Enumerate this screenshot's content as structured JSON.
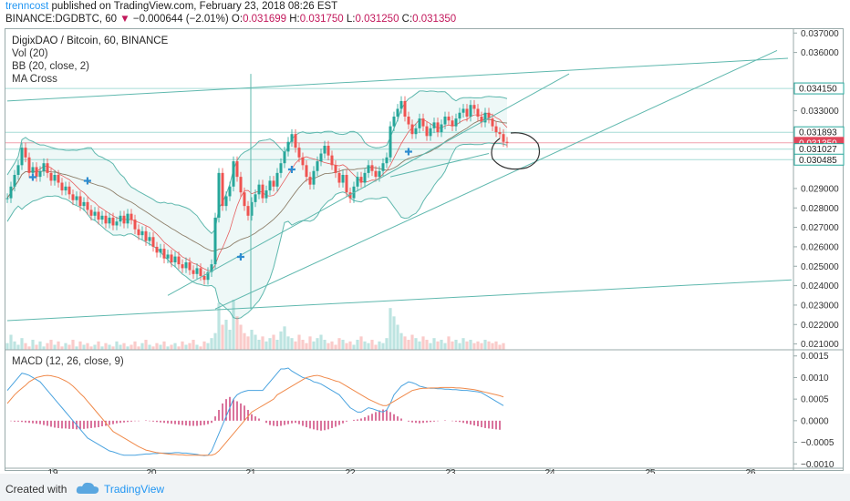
{
  "header": {
    "author": "trenncost",
    "published": " published on TradingView.com, February 23, 2018 08:26 EST",
    "symbol": "BINANCE:DGDBTC, 60",
    "change_arrow": "▼",
    "change": "−0.000644 (−2.01%)",
    "ohlc": [
      {
        "label": "O:",
        "value": "0.031699"
      },
      {
        "label": "H:",
        "value": "0.031750"
      },
      {
        "label": "L:",
        "value": "0.031250"
      },
      {
        "label": "C:",
        "value": "0.031350"
      }
    ],
    "last": "0.031350"
  },
  "legend": {
    "title": "DigixDAO / Bitcoin, 60, BINANCE",
    "vol": "Vol (20)",
    "bb": "BB (20, close, 2)",
    "ma": "MA Cross",
    "macd": "MACD (12, 26, close, 9)"
  },
  "footer": {
    "created_with": "Created with",
    "brand": "TradingView"
  },
  "chart_data": [
    {
      "type": "candlestick",
      "title": "DigixDAO / Bitcoin, 60, BINANCE",
      "x_ticks": [
        "19",
        "20",
        "21",
        "22",
        "23",
        "24",
        "25",
        "26"
      ],
      "ylim": [
        0.0207,
        0.0372
      ],
      "y_ticks": [
        "0.037000",
        "0.036000",
        "0.034150",
        "0.033000",
        "0.031893",
        "0.031350",
        "0.031027",
        "0.030485",
        "0.029000",
        "0.028000",
        "0.027000",
        "0.026000",
        "0.025000",
        "0.024000",
        "0.023000",
        "0.022000",
        "0.021000"
      ],
      "price_labels": [
        {
          "value": "0.034150",
          "y": 0.03415,
          "style": "outline"
        },
        {
          "value": "0.031893",
          "y": 0.031893,
          "style": "outline"
        },
        {
          "value": "0.031350",
          "y": 0.03135,
          "style": "red"
        },
        {
          "value": "34:16",
          "y": 0.03085,
          "style": "red"
        },
        {
          "value": "0.031027",
          "y": 0.031027,
          "style": "outline"
        },
        {
          "value": "0.030485",
          "y": 0.030485,
          "style": "outline"
        }
      ],
      "closes_start": 0.0285,
      "closes": [
        0.0285,
        0.0291,
        0.0297,
        0.0302,
        0.0311,
        0.0306,
        0.0298,
        0.0301,
        0.0296,
        0.0299,
        0.0303,
        0.0298,
        0.0294,
        0.0297,
        0.0293,
        0.0289,
        0.0291,
        0.0287,
        0.0284,
        0.0286,
        0.0281,
        0.0283,
        0.0279,
        0.0276,
        0.0278,
        0.0274,
        0.0276,
        0.0272,
        0.0275,
        0.0271,
        0.0273,
        0.0276,
        0.0272,
        0.0277,
        0.0274,
        0.0269,
        0.0266,
        0.0268,
        0.0263,
        0.0265,
        0.026,
        0.0257,
        0.0259,
        0.0254,
        0.0256,
        0.0252,
        0.0255,
        0.0251,
        0.0249,
        0.0252,
        0.0248,
        0.0246,
        0.0249,
        0.0245,
        0.0243,
        0.0247,
        0.0251,
        0.0275,
        0.0298,
        0.0281,
        0.0286,
        0.0291,
        0.0304,
        0.0296,
        0.0288,
        0.0281,
        0.0276,
        0.0283,
        0.0287,
        0.0292,
        0.0285,
        0.0289,
        0.0294,
        0.0291,
        0.0298,
        0.0303,
        0.0309,
        0.0314,
        0.0318,
        0.0311,
        0.0306,
        0.0302,
        0.0296,
        0.0292,
        0.0299,
        0.0304,
        0.0308,
        0.0312,
        0.0307,
        0.0302,
        0.0298,
        0.0293,
        0.0297,
        0.0288,
        0.0285,
        0.0291,
        0.0296,
        0.0293,
        0.0298,
        0.0302,
        0.0299,
        0.0296,
        0.0299,
        0.0303,
        0.0306,
        0.0322,
        0.0327,
        0.0331,
        0.0335,
        0.0327,
        0.0323,
        0.0318,
        0.0321,
        0.0326,
        0.0322,
        0.0317,
        0.0321,
        0.0324,
        0.0319,
        0.0323,
        0.0327,
        0.0325,
        0.0322,
        0.0326,
        0.0329,
        0.0331,
        0.0327,
        0.0333,
        0.0331,
        0.0327,
        0.0324,
        0.0329,
        0.0326,
        0.0322,
        0.0319,
        0.0318,
        0.0314,
        0.03135
      ],
      "volume": [
        4,
        9,
        5,
        3,
        7,
        4,
        2,
        6,
        3,
        5,
        2,
        4,
        6,
        3,
        5,
        2,
        4,
        3,
        6,
        2,
        5,
        3,
        4,
        2,
        3,
        5,
        2,
        4,
        3,
        2,
        5,
        3,
        4,
        2,
        3,
        5,
        2,
        4,
        6,
        3,
        2,
        4,
        3,
        5,
        2,
        3,
        4,
        2,
        5,
        3,
        4,
        6,
        3,
        2,
        5,
        4,
        7,
        10,
        28,
        15,
        18,
        12,
        30,
        20,
        15,
        10,
        8,
        12,
        9,
        6,
        8,
        5,
        7,
        9,
        6,
        11,
        14,
        8,
        7,
        5,
        9,
        6,
        4,
        8,
        5,
        7,
        9,
        6,
        4,
        5,
        3,
        7,
        6,
        4,
        5,
        3,
        6,
        8,
        5,
        4,
        6,
        3,
        5,
        4,
        7,
        25,
        20,
        15,
        10,
        8,
        6,
        9,
        7,
        5,
        8,
        6,
        4,
        7,
        5,
        6,
        4,
        8,
        5,
        6,
        4,
        7,
        5,
        6,
        4,
        5,
        4,
        6,
        5,
        4,
        5,
        3,
        4
      ],
      "trendlines": [
        {
          "from": [
            0,
            0.0335
          ],
          "to": [
            214,
            0.0357
          ]
        },
        {
          "from": [
            0,
            0.0222
          ],
          "to": [
            215,
            0.0243
          ]
        },
        {
          "from": [
            44,
            0.0235
          ],
          "to": [
            154,
            0.0349
          ]
        },
        {
          "from": [
            57,
            0.0228
          ],
          "to": [
            211,
            0.0361
          ]
        },
        {
          "from": [
            105,
            0.0296
          ],
          "to": [
            132,
            0.0308
          ]
        }
      ],
      "horizontal_lines": [
        0.03415,
        0.031893,
        0.031027,
        0.030485
      ],
      "annotation": "ellipse"
    },
    {
      "type": "histogram+line",
      "title": "MACD (12, 26, close, 9)",
      "ylim": [
        -0.0011,
        0.0016
      ],
      "y_ticks": [
        "0.0015",
        "0.0010",
        "0.0005",
        "0.0000",
        "−0.0005",
        "−0.0010"
      ],
      "macd": [
        0.0007,
        0.0008,
        0.0009,
        0.001,
        0.0011,
        0.00108,
        0.00105,
        0.001,
        0.00095,
        0.0009,
        0.0008,
        0.0007,
        0.0006,
        0.0005,
        0.0004,
        0.0003,
        0.0002,
        0.0001,
        0.0,
        -0.0001,
        -0.0002,
        -0.0003,
        -0.0004,
        -0.00045,
        -0.0005,
        -0.00055,
        -0.0006,
        -0.00065,
        -0.0007,
        -0.00072,
        -0.00075,
        -0.00078,
        -0.0008,
        -0.0008,
        -0.0008,
        -0.0008,
        -0.00079,
        -0.00078,
        -0.00077,
        -0.00077,
        -0.00076,
        -0.00076,
        -0.00075,
        -0.00075,
        -0.00075,
        -0.00075,
        -0.00074,
        -0.00074,
        -0.00075,
        -0.00075,
        -0.00076,
        -0.00077,
        -0.00078,
        -0.0008,
        -0.00081,
        -0.0008,
        -0.0007,
        -0.0005,
        -0.0003,
        -0.0001,
        0.0001,
        0.0003,
        0.0005,
        0.0006,
        0.00065,
        0.00068,
        0.0007,
        0.0007,
        0.0007,
        0.0007,
        0.0007,
        0.0008,
        0.0009,
        0.001,
        0.0011,
        0.0012,
        0.0012,
        0.00122,
        0.00115,
        0.0011,
        0.00105,
        0.001,
        0.00098,
        0.00095,
        0.0009,
        0.00088,
        0.00085,
        0.0008,
        0.00075,
        0.0007,
        0.00065,
        0.0006,
        0.0005,
        0.0004,
        0.0003,
        0.00025,
        0.0002,
        0.0002,
        0.00025,
        0.0003,
        0.00028,
        0.00025,
        0.00022,
        0.0002,
        0.00025,
        0.0004,
        0.0006,
        0.0007,
        0.0008,
        0.00085,
        0.0009,
        0.00088,
        0.00085,
        0.0008,
        0.00078,
        0.00076,
        0.00075,
        0.00075,
        0.00074,
        0.00074,
        0.00073,
        0.00073,
        0.00072,
        0.00072,
        0.00071,
        0.0007,
        0.0007,
        0.00069,
        0.00068,
        0.00067,
        0.00065,
        0.0006,
        0.00055,
        0.0005,
        0.00045,
        0.0004,
        0.00035
      ],
      "signal": [
        0.0004,
        0.0005,
        0.0006,
        0.00068,
        0.00075,
        0.00082,
        0.0009,
        0.00095,
        0.001,
        0.00102,
        0.00104,
        0.00105,
        0.00104,
        0.00102,
        0.001,
        0.00096,
        0.00092,
        0.00087,
        0.0008,
        0.00072,
        0.00063,
        0.00055,
        0.00045,
        0.00035,
        0.00025,
        0.00015,
        5e-05,
        -5e-05,
        -0.00015,
        -0.00025,
        -0.0003,
        -0.00035,
        -0.0004,
        -0.00045,
        -0.0005,
        -0.00055,
        -0.0006,
        -0.00064,
        -0.00068,
        -0.0007,
        -0.00072,
        -0.00074,
        -0.00075,
        -0.00076,
        -0.00077,
        -0.00078,
        -0.00078,
        -0.00079,
        -0.00079,
        -0.0008,
        -0.0008,
        -0.0008,
        -0.0008,
        -0.0008,
        -0.0008,
        -0.0008,
        -0.0008,
        -0.00077,
        -0.0007,
        -0.0006,
        -0.0005,
        -0.0004,
        -0.0003,
        -0.0002,
        -0.0001,
        0.0,
        0.0001,
        0.0002,
        0.00025,
        0.0003,
        0.00035,
        0.0004,
        0.00045,
        0.0005,
        0.0006,
        0.00065,
        0.0007,
        0.00075,
        0.0008,
        0.00085,
        0.0009,
        0.00095,
        0.001,
        0.00102,
        0.00104,
        0.00105,
        0.00103,
        0.001,
        0.00098,
        0.00095,
        0.00092,
        0.0009,
        0.00085,
        0.0008,
        0.00075,
        0.0007,
        0.00065,
        0.0006,
        0.00055,
        0.0005,
        0.00046,
        0.00042,
        0.00038,
        0.00035,
        0.00035,
        0.0004,
        0.00045,
        0.0005,
        0.00055,
        0.0006,
        0.00065,
        0.0007,
        0.00072,
        0.00074,
        0.00075,
        0.00075,
        0.00076,
        0.00076,
        0.00076,
        0.00077,
        0.00077,
        0.00077,
        0.00077,
        0.00076,
        0.00076,
        0.00075,
        0.00074,
        0.00073,
        0.00072,
        0.0007,
        0.00068,
        0.00066,
        0.00064,
        0.00062,
        0.0006,
        0.00058,
        0.00055
      ],
      "histogram": [
        0.0,
        -1e-05,
        -2e-05,
        -2e-05,
        -3e-05,
        -4e-05,
        -5e-05,
        -6e-05,
        -7e-05,
        -8e-05,
        -0.0001,
        -0.00012,
        -0.00014,
        -0.00016,
        -0.00017,
        -0.00018,
        -0.00018,
        -0.00019,
        -0.00019,
        -0.0002,
        -0.0002,
        -0.00019,
        -0.00018,
        -0.00017,
        -0.00016,
        -0.00015,
        -0.00013,
        -0.00012,
        -0.0001,
        -8e-05,
        -6e-05,
        -5e-05,
        -4e-05,
        -3e-05,
        -2e-05,
        -1e-05,
        -1e-05,
        0.0,
        1e-05,
        -1e-05,
        -2e-05,
        -3e-05,
        -4e-05,
        -5e-05,
        -6e-05,
        -7e-05,
        -8e-05,
        -9e-05,
        -0.0001,
        -0.00011,
        -0.00012,
        -0.00012,
        -0.00012,
        -0.00011,
        -0.0001,
        -8e-05,
        -5e-05,
        0.0001,
        0.00025,
        0.0004,
        0.0005,
        0.00055,
        0.0005,
        0.00045,
        0.0004,
        0.00035,
        0.00025,
        0.00015,
        0.0001,
        5e-05,
        0.0,
        -5e-05,
        -0.0001,
        -0.00012,
        -0.00013,
        -0.00012,
        -0.0001,
        -8e-05,
        -6e-05,
        -5e-05,
        -8e-05,
        -0.00012,
        -0.00015,
        -0.00018,
        -0.0002,
        -0.00022,
        -0.00023,
        -0.00022,
        -0.0002,
        -0.00017,
        -0.00014,
        -0.0001,
        -6e-05,
        -2e-05,
        0.0,
        2e-05,
        3e-05,
        5e-05,
        8e-05,
        0.00012,
        0.00016,
        0.0002,
        0.00024,
        0.00026,
        0.00024,
        0.0002,
        0.00015,
        0.0001,
        5e-05,
        0.0,
        -2e-05,
        -4e-05,
        -5e-05,
        -6e-05,
        -5e-05,
        -4e-05,
        -3e-05,
        -2e-05,
        -1e-05,
        0.0,
        1e-05,
        0.0,
        -1e-05,
        -2e-05,
        -3e-05,
        -5e-05,
        -7e-05,
        -9e-05,
        -0.00011,
        -0.00013,
        -0.00015,
        -0.00017,
        -0.00018,
        -0.00019,
        -0.0002,
        -0.00021
      ]
    }
  ]
}
